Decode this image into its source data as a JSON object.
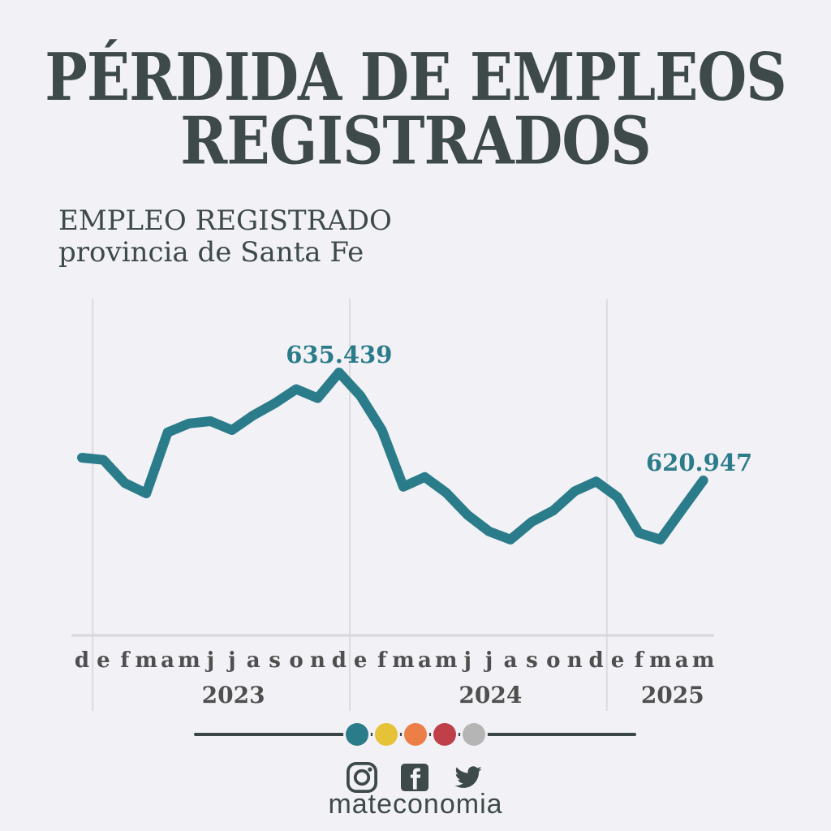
{
  "colors": {
    "background": "#f2f1f6",
    "ink": "#3e4a4a",
    "accent_teal": "#2b7c8a",
    "tick_gray": "#4f4f4f"
  },
  "header": {
    "title_line1": "PÉRDIDA DE EMPLEOS",
    "title_line2": "REGISTRADOS"
  },
  "subtitle": {
    "line1": "EMPLEO REGISTRADO",
    "line2": "provincia de Santa Fe"
  },
  "chart_data": {
    "type": "line",
    "title": "EMPLEO REGISTRADO — provincia de Santa Fe",
    "x_labels": [
      "d",
      "e",
      "f",
      "m",
      "a",
      "m",
      "j",
      "j",
      "a",
      "s",
      "o",
      "n",
      "d",
      "e",
      "f",
      "m",
      "a",
      "m",
      "j",
      "j",
      "a",
      "s",
      "o",
      "n",
      "d",
      "e",
      "f",
      "m",
      "a",
      "m"
    ],
    "year_labels": [
      "2023",
      "2024",
      "2025"
    ],
    "series": [
      {
        "name": "Empleo registrado (provincia de Santa Fe)",
        "values": [
          624000,
          623700,
          620600,
          619200,
          627400,
          628600,
          628900,
          627700,
          629700,
          631300,
          633200,
          632000,
          635439,
          632300,
          627700,
          620100,
          621400,
          619300,
          616300,
          614100,
          613000,
          615400,
          616900,
          619500,
          620800,
          618700,
          613900,
          613000,
          617000,
          620947
        ]
      }
    ],
    "annotations": [
      {
        "name": "peak-value-label",
        "index": 12,
        "label": "635.439"
      },
      {
        "name": "latest-value-label",
        "index": 29,
        "label": "620.947"
      }
    ],
    "line_color": "#2b7c8a",
    "grid": "vertical lines at year boundaries only",
    "legend": "none",
    "ylim": [
      611000,
      637500
    ]
  },
  "footer": {
    "dots": [
      {
        "name": "dot-teal",
        "color": "#2b7c8a"
      },
      {
        "name": "dot-yellow",
        "color": "#e5c238"
      },
      {
        "name": "dot-orange",
        "color": "#ec7e47"
      },
      {
        "name": "dot-red",
        "color": "#bf4049"
      },
      {
        "name": "dot-gray",
        "color": "#b5b5b5"
      }
    ],
    "social": [
      {
        "name": "instagram-icon"
      },
      {
        "name": "facebook-icon"
      },
      {
        "name": "twitter-icon"
      }
    ],
    "handle": "mateconomia"
  }
}
